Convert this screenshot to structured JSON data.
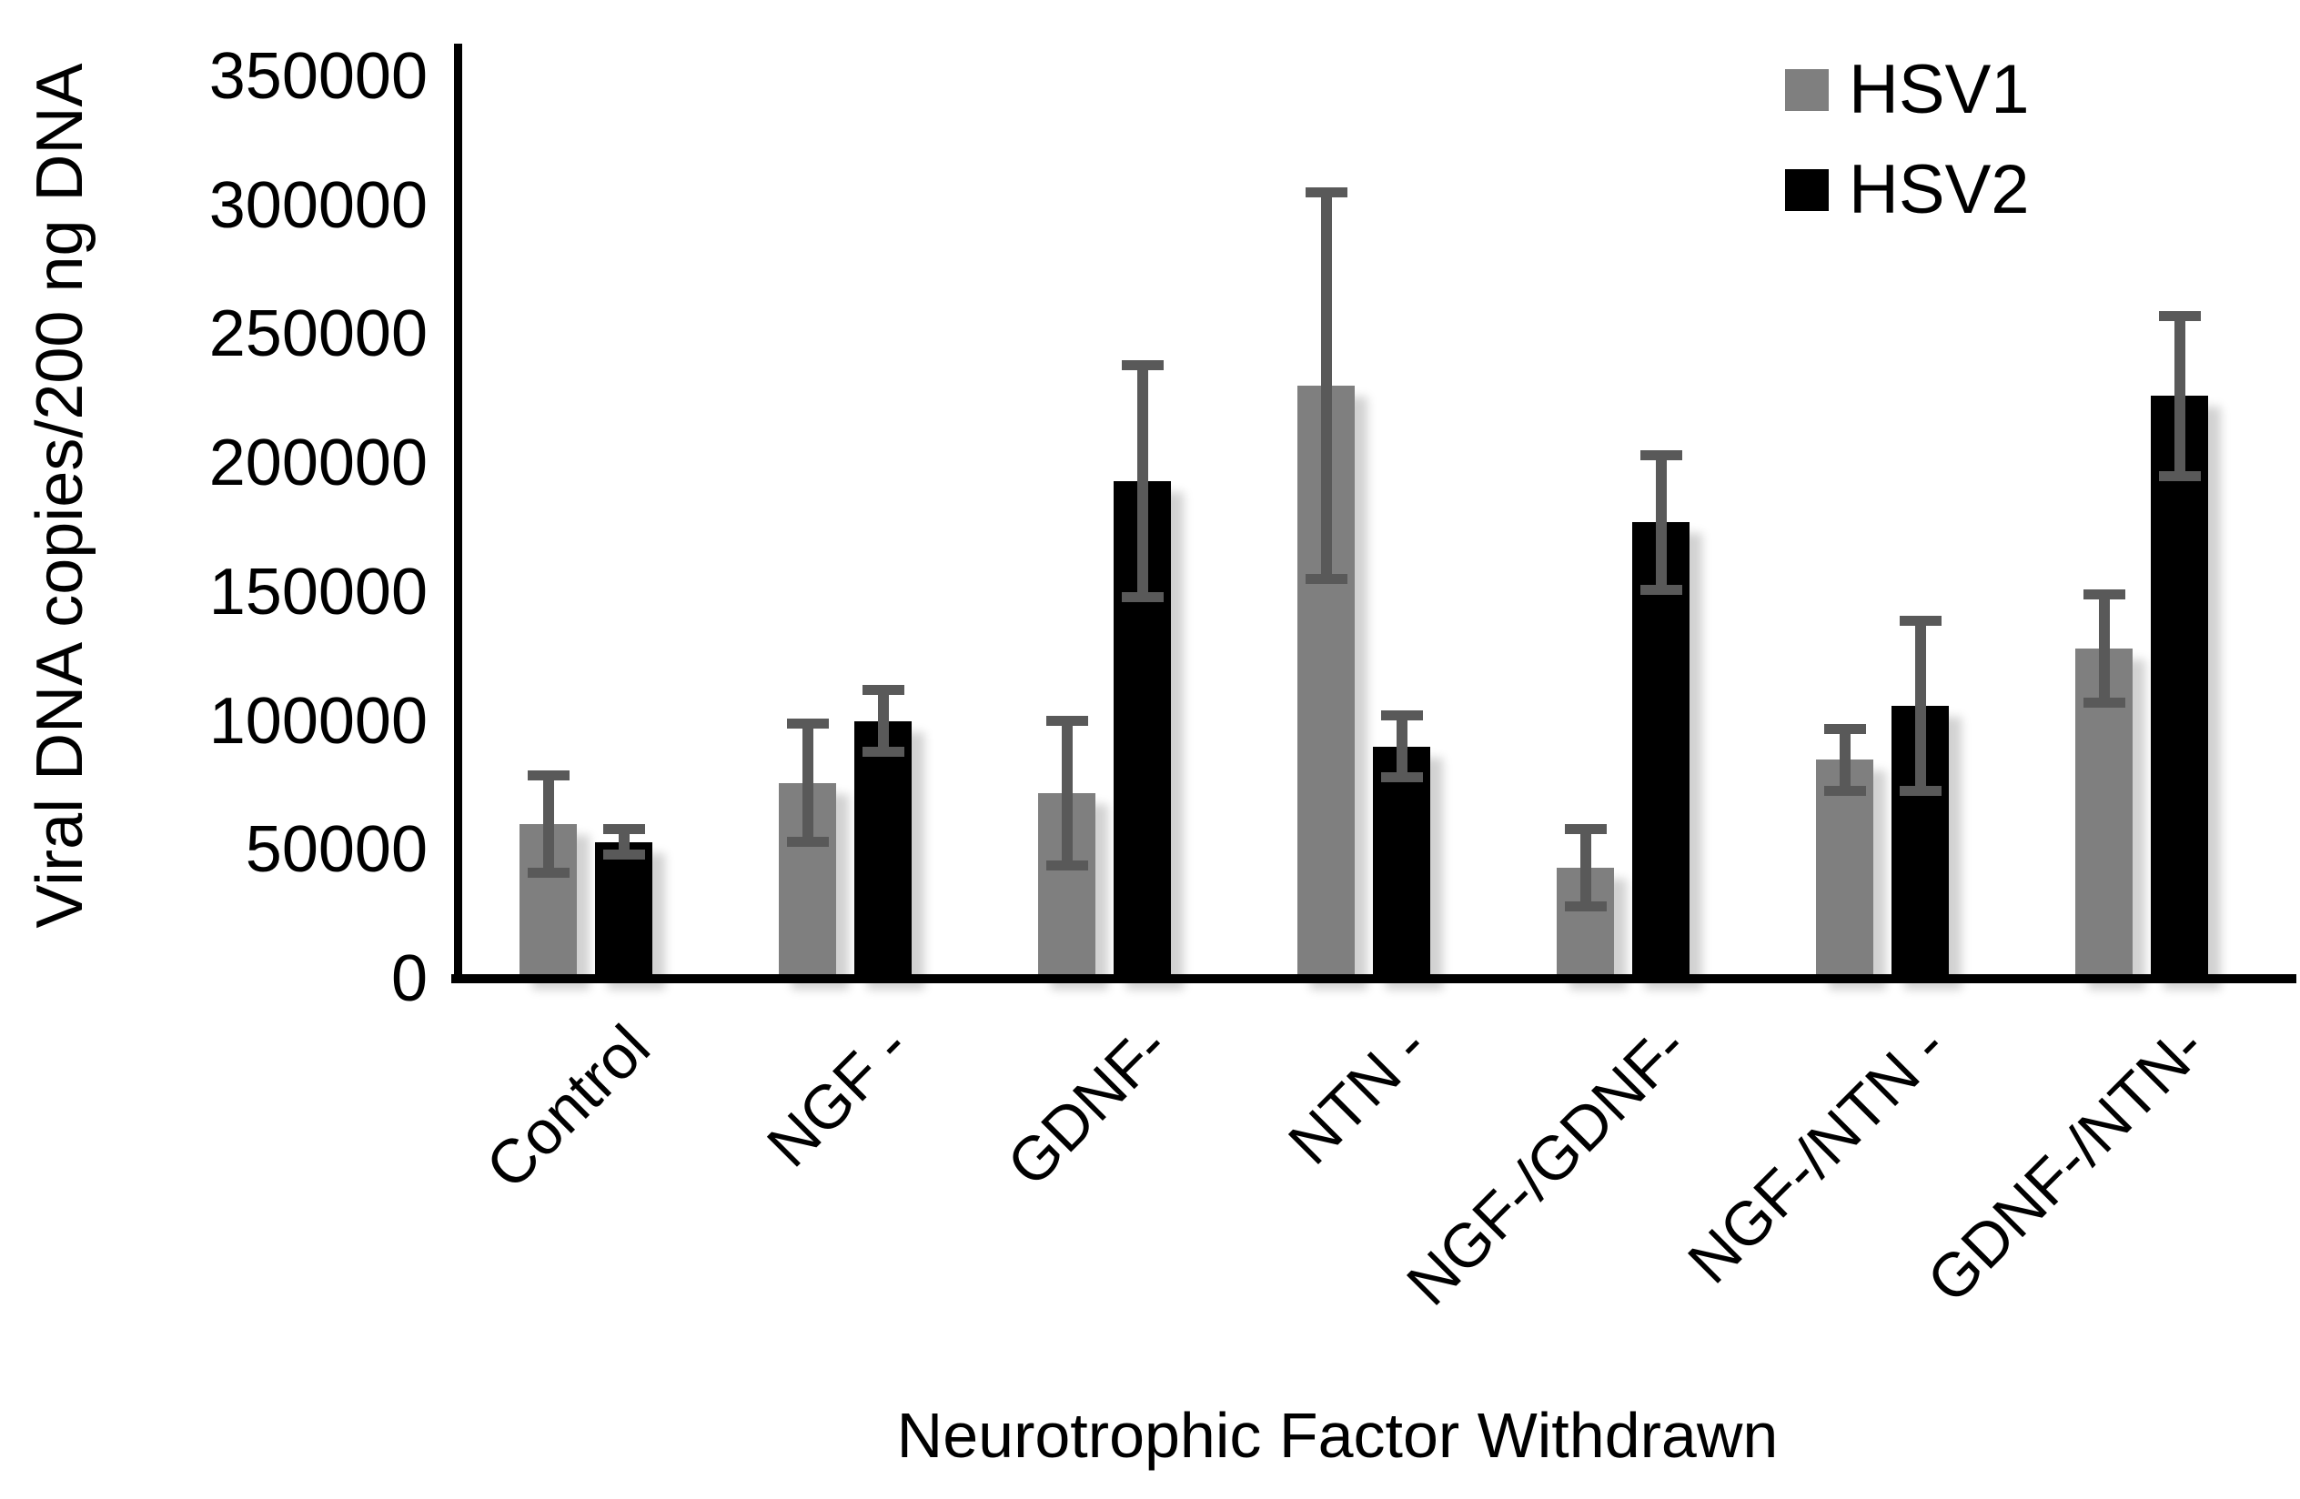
{
  "legend": {
    "items": [
      {
        "label": "HSV1",
        "color": "#7f7f7f"
      },
      {
        "label": "HSV2",
        "color": "#000000"
      }
    ]
  },
  "chart_data": {
    "type": "bar",
    "title": "",
    "xlabel": "Neurotrophic Factor Withdrawn",
    "ylabel": "Viral DNA copies/200 ng DNA",
    "categories": [
      "Control",
      "NGF -",
      "GDNF-",
      "NTN -",
      "NGF-/GDNF-",
      "NGF-/NTN -",
      "GDNF-/NTN-"
    ],
    "series": [
      {
        "name": "HSV1",
        "color": "#7f7f7f",
        "values": [
          60000,
          76000,
          72000,
          230000,
          43000,
          85000,
          128000
        ],
        "errors": [
          19000,
          23000,
          28000,
          75000,
          15000,
          12000,
          21000
        ]
      },
      {
        "name": "HSV2",
        "color": "#000000",
        "values": [
          53000,
          100000,
          193000,
          90000,
          177000,
          106000,
          226000
        ],
        "errors": [
          5000,
          12000,
          45000,
          12000,
          26000,
          33000,
          31000
        ]
      }
    ],
    "ylim": [
      0,
      350000
    ],
    "yticks": [
      0,
      50000,
      100000,
      150000,
      200000,
      250000,
      300000,
      350000
    ],
    "grid": false,
    "legend_position": "top-right",
    "error_bar_color": "#595959",
    "axis_color": "#000000",
    "background_color": "#ffffff"
  }
}
